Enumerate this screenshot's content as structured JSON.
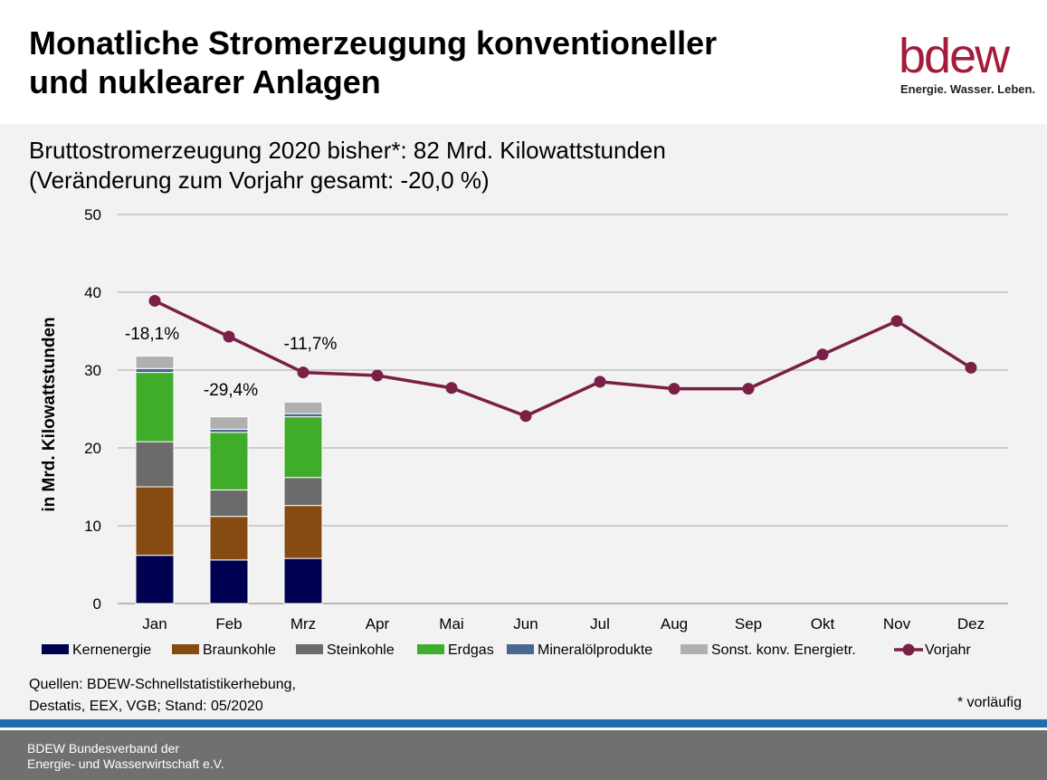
{
  "header": {
    "title_line1": "Monatliche Stromerzeugung konventioneller",
    "title_line2": "und nuklearer Anlagen",
    "logo_word": "bdew",
    "logo_tagline": "Energie. Wasser. Leben."
  },
  "subtitle": {
    "line1": "Bruttostromerzeugung 2020 bisher*: 82 Mrd. Kilowattstunden",
    "line2": "(Veränderung zum Vorjahr gesamt: -20,0 %)"
  },
  "chart_data": {
    "type": "bar",
    "stacked": true,
    "ylabel": "in Mrd. Kilowattstunden",
    "ylim": [
      0,
      50
    ],
    "yticks": [
      0,
      10,
      20,
      30,
      40,
      50
    ],
    "grid": true,
    "legend_position": "bottom",
    "categories": [
      "Jan",
      "Feb",
      "Mrz",
      "Apr",
      "Mai",
      "Jun",
      "Jul",
      "Aug",
      "Sep",
      "Okt",
      "Nov",
      "Dez"
    ],
    "series": [
      {
        "name": "Kernenergie",
        "color": "#000050",
        "values": [
          6.2,
          5.6,
          5.8,
          null,
          null,
          null,
          null,
          null,
          null,
          null,
          null,
          null
        ]
      },
      {
        "name": "Braunkohle",
        "color": "#854b10",
        "values": [
          8.8,
          5.6,
          6.8,
          null,
          null,
          null,
          null,
          null,
          null,
          null,
          null,
          null
        ]
      },
      {
        "name": "Steinkohle",
        "color": "#6b6b6b",
        "values": [
          5.8,
          3.4,
          3.6,
          null,
          null,
          null,
          null,
          null,
          null,
          null,
          null,
          null
        ]
      },
      {
        "name": "Erdgas",
        "color": "#3fad2a",
        "values": [
          8.9,
          7.4,
          7.8,
          null,
          null,
          null,
          null,
          null,
          null,
          null,
          null,
          null
        ]
      },
      {
        "name": "Mineralölprodukte",
        "color": "#4a6590",
        "values": [
          0.5,
          0.4,
          0.4,
          null,
          null,
          null,
          null,
          null,
          null,
          null,
          null,
          null
        ]
      },
      {
        "name": "Sonst. konv. Energietr.",
        "color": "#b0b0b0",
        "values": [
          1.6,
          1.6,
          1.5,
          null,
          null,
          null,
          null,
          null,
          null,
          null,
          null,
          null
        ]
      }
    ],
    "line_series": {
      "name": "Vorjahr",
      "color": "#7a1f45",
      "values": [
        38.9,
        34.3,
        29.7,
        29.3,
        27.7,
        24.1,
        28.5,
        27.6,
        27.6,
        32.0,
        36.3,
        30.3
      ]
    },
    "annotations": [
      {
        "category": "Jan",
        "text": "-18,1%"
      },
      {
        "category": "Feb",
        "text": "-29,4%"
      },
      {
        "category": "Mrz",
        "text": "-11,7%"
      }
    ]
  },
  "sources": {
    "line1": "Quellen: BDEW-Schnellstatistikerhebung,",
    "line2": "Destatis, EEX, VGB; Stand: 05/2020"
  },
  "footnote": "* vorläufig",
  "footer": {
    "line1": "BDEW Bundesverband der",
    "line2": "Energie- und Wasserwirtschaft e.V."
  }
}
